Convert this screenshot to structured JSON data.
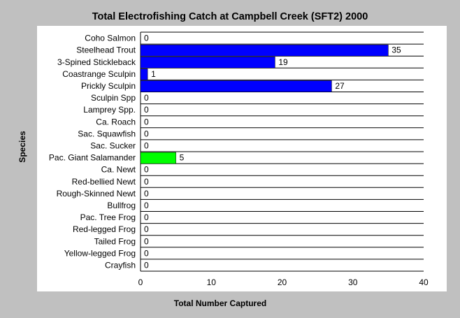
{
  "chart_data": {
    "type": "bar",
    "orientation": "horizontal",
    "title": "Total Electrofishing Catch at Campbell Creek (SFT2) 2000",
    "xlabel": "Total Number Captured",
    "ylabel": "Species",
    "xlim": [
      0,
      40
    ],
    "xticks": [
      0,
      10,
      20,
      30,
      40
    ],
    "grid": true,
    "categories": [
      "Coho Salmon",
      "Steelhead Trout",
      "3-Spined Stickleback",
      "Coastrange Sculpin",
      "Prickly Sculpin",
      "Sculpin Spp",
      "Lamprey Spp.",
      "Ca. Roach",
      "Sac. Squawfish",
      "Sac. Sucker",
      "Pac. Giant Salamander",
      "Ca. Newt",
      "Red-bellied Newt",
      "Rough-Skinned Newt",
      "Bullfrog",
      "Pac. Tree Frog",
      "Red-legged Frog",
      "Tailed Frog",
      "Yellow-legged Frog",
      "Crayfish"
    ],
    "values": [
      0,
      35,
      19,
      1,
      27,
      0,
      0,
      0,
      0,
      0,
      5,
      0,
      0,
      0,
      0,
      0,
      0,
      0,
      0,
      0
    ],
    "colors": [
      "#0000ff",
      "#0000ff",
      "#0000ff",
      "#0000ff",
      "#0000ff",
      "#0000ff",
      "#0000ff",
      "#0000ff",
      "#0000ff",
      "#0000ff",
      "#00ff00",
      "#00ff00",
      "#00ff00",
      "#00ff00",
      "#00ff00",
      "#00ff00",
      "#00ff00",
      "#00ff00",
      "#00ff00",
      "#00ff00"
    ]
  }
}
